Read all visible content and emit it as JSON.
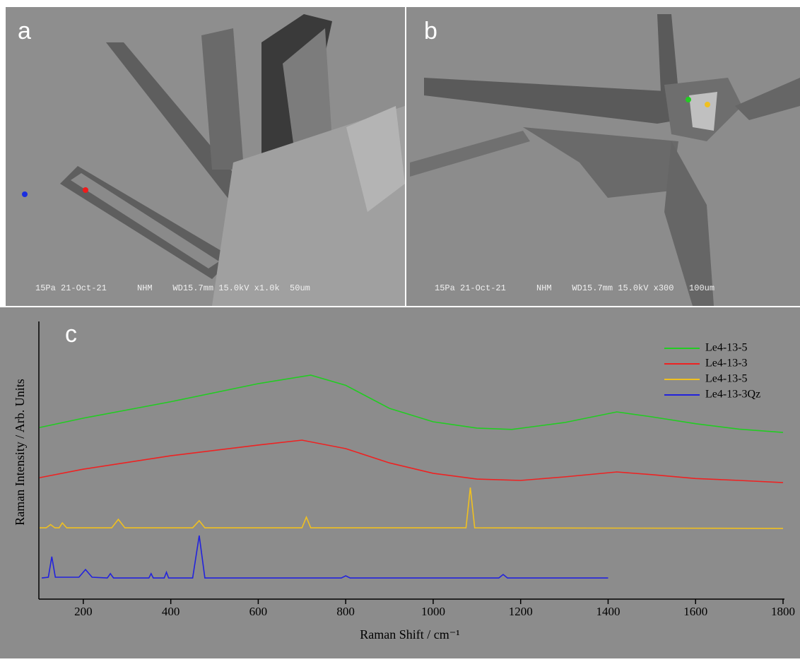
{
  "images": [
    {
      "label": "a",
      "caption": "15Pa 21-Oct-21      NHM    WD15.7mm 15.0kV x1.0k  50um"
    },
    {
      "label": "b",
      "caption": "15Pa 21-Oct-21      NHM    WD15.7mm 15.0kV x300   100um"
    }
  ],
  "chart_data": {
    "type": "line",
    "panel_label": "c",
    "x_label": "Raman Shift / cm⁻¹",
    "y_label": "Raman Intensity / Arb. Units",
    "xlim": [
      100,
      1800
    ],
    "xticks": [
      200,
      400,
      600,
      800,
      1000,
      1200,
      1400,
      1600,
      1800
    ],
    "ylim": [
      0,
      100
    ],
    "legend": "top-right",
    "series": [
      {
        "name": "Le4-13-5",
        "color": "#22cc22",
        "x": [
          100,
          200,
          400,
          600,
          720,
          800,
          900,
          1000,
          1100,
          1180,
          1300,
          1420,
          1500,
          1600,
          1700,
          1800
        ],
        "values": [
          62.6,
          66,
          72,
          78.6,
          81.7,
          78,
          69.6,
          64.7,
          62.4,
          61.9,
          64.4,
          68.3,
          66.5,
          64,
          62,
          60.8
        ]
      },
      {
        "name": "Le4-13-3",
        "color": "#ee2222",
        "x": [
          100,
          200,
          400,
          600,
          700,
          800,
          900,
          1000,
          1100,
          1200,
          1300,
          1420,
          1500,
          1600,
          1700,
          1800
        ],
        "values": [
          44.3,
          47.4,
          52.3,
          56.2,
          58,
          54.9,
          49.7,
          45.9,
          43.8,
          43.3,
          44.6,
          46.4,
          45.4,
          44,
          43.3,
          42.5
        ]
      },
      {
        "name": "Le4-13-5",
        "color": "#f0c020",
        "x": [
          100,
          115,
          125,
          135,
          145,
          152,
          162,
          265,
          280,
          295,
          450,
          465,
          478,
          700,
          710,
          720,
          1075,
          1085,
          1095,
          1800
        ],
        "values": [
          26,
          26,
          27.2,
          26,
          26,
          27.8,
          26,
          26,
          29.1,
          26,
          26,
          28.6,
          26,
          26,
          29.9,
          26,
          26,
          40.7,
          26,
          25.8
        ]
      },
      {
        "name": "Le4-13-3Qz",
        "color": "#2222dd",
        "x": [
          105,
          120,
          128,
          136,
          190,
          205,
          220,
          255,
          262,
          269,
          350,
          355,
          360,
          385,
          390,
          395,
          450,
          465,
          478,
          790,
          800,
          810,
          1150,
          1160,
          1170,
          1400
        ],
        "values": [
          7.7,
          8,
          15.5,
          8,
          8,
          10.8,
          8,
          7.7,
          9.3,
          7.7,
          7.7,
          9.3,
          7.7,
          7.7,
          9.8,
          7.7,
          7.7,
          23.2,
          7.7,
          7.7,
          8.5,
          7.7,
          7.7,
          9,
          7.7,
          7.7
        ]
      }
    ]
  }
}
